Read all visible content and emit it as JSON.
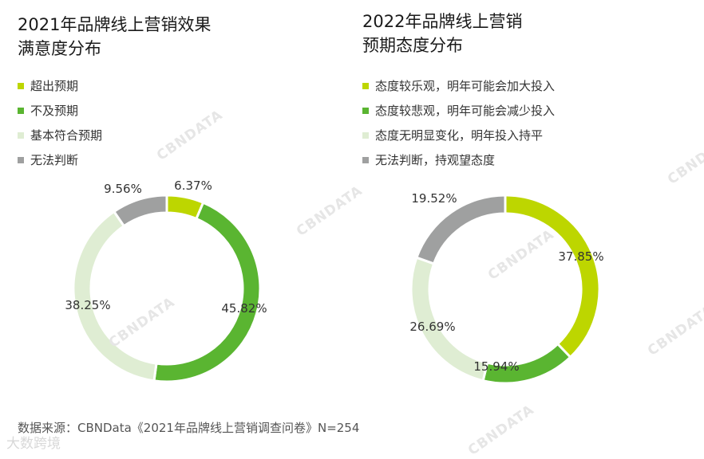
{
  "watermark_text": "CBNDATA",
  "footer_logo": "大数跨境",
  "source": "数据来源：CBNData《2021年品牌线上营销调查问卷》N=254",
  "chart_data": [
    {
      "type": "pie",
      "donut": true,
      "title_lines": [
        "2021年品牌线上营销效果",
        "满意度分布"
      ],
      "categories": [
        "超出预期",
        "不及预期",
        "基本符合预期",
        "无法判断"
      ],
      "values": [
        6.37,
        45.82,
        38.25,
        9.56
      ],
      "value_labels": [
        "6.37%",
        "45.82%",
        "38.25%",
        "9.56%"
      ],
      "colors": [
        "#bdd600",
        "#5ab531",
        "#dfedd3",
        "#9fa0a0"
      ],
      "legend_position": "top-left"
    },
    {
      "type": "pie",
      "donut": true,
      "title_lines": [
        "2022年品牌线上营销",
        "预期态度分布"
      ],
      "categories": [
        "态度较乐观，明年可能会加大投入",
        "态度较悲观，明年可能会减少投入",
        "态度无明显变化，明年投入持平",
        "无法判断，持观望态度"
      ],
      "values": [
        37.85,
        15.94,
        26.69,
        19.52
      ],
      "value_labels": [
        "37.85%",
        "15.94%",
        "26.69%",
        "19.52%"
      ],
      "colors": [
        "#bdd600",
        "#5ab531",
        "#dfedd3",
        "#9fa0a0"
      ],
      "legend_position": "top-left"
    }
  ]
}
